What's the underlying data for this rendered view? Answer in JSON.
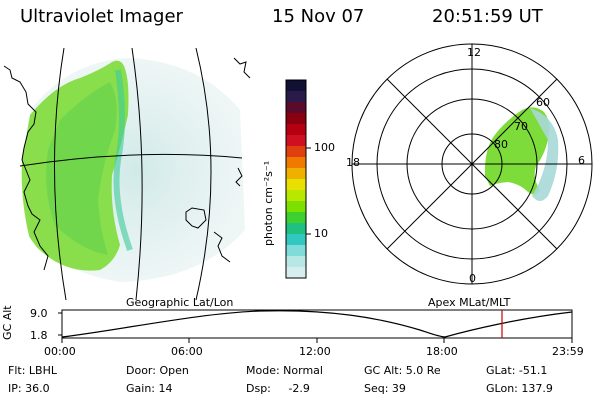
{
  "header": {
    "title": "Ultraviolet Imager",
    "date": "15 Nov 07",
    "time": "20:51:59 UT"
  },
  "colorbar": {
    "label": "photon cm⁻²s⁻¹",
    "ticks": [
      "100",
      "10"
    ],
    "colors": [
      "#111133",
      "#2a1a4a",
      "#5a0a2a",
      "#8a0010",
      "#b40010",
      "#d01020",
      "#e04010",
      "#f07a00",
      "#f0b000",
      "#e8e000",
      "#b8e800",
      "#7ee000",
      "#3ed030",
      "#20c080",
      "#30c8c0",
      "#80dcd8",
      "#b8e8e6",
      "#d8eeee"
    ]
  },
  "geo_panel": {
    "label": "Geographic Lat/Lon",
    "aurora_color": "#7edc3a",
    "diffuse_color": "#a8d8d8",
    "coast_color": "#000000"
  },
  "polar_panel": {
    "label": "Apex MLat/MLT",
    "mlt_labels": [
      "12",
      "6",
      "0",
      "18"
    ],
    "lat_labels": [
      "60",
      "70",
      "80"
    ]
  },
  "alt_plot": {
    "ylabel": "GC Alt",
    "y_ticks": [
      "9.0",
      "1.8"
    ],
    "x_ticks": [
      "00:00",
      "06:00",
      "12:00",
      "18:00",
      "23:59"
    ],
    "marker_color": "#cc0000"
  },
  "footer": {
    "row1": [
      "Flt: LBHL",
      "Door: Open",
      "Mode: Normal",
      "GC Alt: 5.0 Re",
      "GLat: -51.1"
    ],
    "row2": [
      "IP: 36.0",
      "Gain: 14",
      "Dsp:     -2.9",
      "Seq: 39",
      "GLon: 137.9"
    ]
  }
}
